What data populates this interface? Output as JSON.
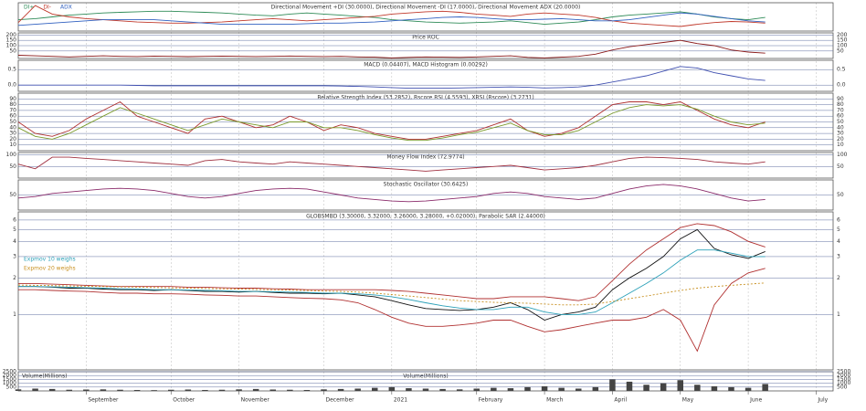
{
  "x_axis": {
    "xlim": [
      0,
      48
    ],
    "ticks": [
      {
        "value": 4,
        "label": "September"
      },
      {
        "value": 9,
        "label": "October"
      },
      {
        "value": 13,
        "label": "November"
      },
      {
        "value": 18,
        "label": "December"
      },
      {
        "value": 22,
        "label": "2021"
      },
      {
        "value": 27,
        "label": "February"
      },
      {
        "value": 31,
        "label": "March"
      },
      {
        "value": 35,
        "label": "April"
      },
      {
        "value": 39,
        "label": "May"
      },
      {
        "value": 43,
        "label": "June"
      },
      {
        "value": 47,
        "label": "July"
      }
    ]
  },
  "chart_data": [
    {
      "type": "line",
      "title": "Directional Movement +DI (30.0000), Directional Movement -DI (17.0000), Directional Movement ADX (20.0000)",
      "ylim": [
        0,
        50
      ],
      "yticks": [],
      "series": [
        {
          "name": "DI+",
          "color": "#2e8b57",
          "values": [
            20,
            22,
            25,
            28,
            30,
            32,
            33,
            34,
            35,
            35,
            34,
            33,
            32,
            30,
            28,
            27,
            30,
            32,
            30,
            28,
            26,
            24,
            20,
            18,
            16,
            15,
            14,
            15,
            16,
            18,
            15,
            12,
            14,
            16,
            20,
            25,
            28,
            30,
            32,
            34,
            30,
            25,
            22,
            20,
            24
          ]
        },
        {
          "name": "DI-",
          "color": "#c0392b",
          "values": [
            15,
            45,
            30,
            25,
            22,
            20,
            18,
            16,
            15,
            14,
            14,
            15,
            16,
            18,
            20,
            22,
            20,
            18,
            20,
            22,
            24,
            26,
            30,
            32,
            34,
            35,
            33,
            30,
            28,
            26,
            30,
            32,
            30,
            28,
            24,
            18,
            14,
            12,
            10,
            8,
            12,
            15,
            17,
            16,
            14
          ]
        },
        {
          "name": "ADX",
          "color": "#3060c0",
          "values": [
            10,
            12,
            14,
            16,
            18,
            20,
            20,
            20,
            20,
            18,
            16,
            14,
            12,
            12,
            12,
            12,
            12,
            13,
            14,
            14,
            15,
            16,
            18,
            20,
            22,
            24,
            25,
            24,
            22,
            20,
            20,
            21,
            22,
            20,
            18,
            18,
            20,
            24,
            28,
            32,
            30,
            26,
            22,
            18,
            16
          ]
        }
      ]
    },
    {
      "type": "line",
      "title": "Price ROC",
      "ylim": [
        -20,
        220
      ],
      "yticks": [
        50,
        100,
        150,
        200
      ],
      "series": [
        {
          "color": "#8b1a1a",
          "values": [
            10,
            5,
            0,
            -5,
            0,
            5,
            0,
            -2,
            2,
            0,
            -3,
            0,
            2,
            0,
            -2,
            0,
            3,
            0,
            -2,
            0,
            -5,
            -8,
            -15,
            -10,
            -5,
            -8,
            -10,
            -5,
            0,
            5,
            -10,
            -15,
            -8,
            0,
            20,
            60,
            90,
            110,
            130,
            150,
            120,
            100,
            60,
            40,
            30
          ]
        }
      ]
    },
    {
      "type": "line",
      "title": "MACD (0.04407), MACD Histogram (0.00292)",
      "ylim": [
        -0.2,
        0.8
      ],
      "yticks": [
        {
          "value": 0,
          "label": "0.0"
        },
        0.5
      ],
      "series": [
        {
          "color": "#4050b0",
          "values": [
            0,
            0,
            0,
            0,
            0,
            0,
            0,
            -0.01,
            -0.02,
            -0.02,
            -0.02,
            -0.02,
            -0.02,
            -0.02,
            -0.02,
            -0.02,
            -0.02,
            -0.02,
            -0.02,
            -0.03,
            -0.04,
            -0.06,
            -0.08,
            -0.1,
            -0.1,
            -0.1,
            -0.09,
            -0.08,
            -0.07,
            -0.06,
            -0.07,
            -0.09,
            -0.08,
            -0.06,
            0,
            0.1,
            0.2,
            0.3,
            0.45,
            0.6,
            0.55,
            0.4,
            0.3,
            0.2,
            0.15
          ]
        }
      ]
    },
    {
      "type": "line",
      "title": "Relative Strength Index (53.2852), Rscore RSI (4.5593), XRSI (Rscore) (3.2731)",
      "ylim": [
        0,
        100
      ],
      "yticks": [
        10,
        20,
        30,
        40,
        50,
        60,
        70,
        80,
        90
      ],
      "series": [
        {
          "color": "#b03030",
          "values": [
            50,
            30,
            25,
            35,
            55,
            70,
            85,
            60,
            50,
            40,
            30,
            55,
            60,
            50,
            40,
            45,
            60,
            50,
            35,
            45,
            40,
            30,
            25,
            20,
            20,
            25,
            30,
            35,
            45,
            55,
            35,
            25,
            30,
            40,
            60,
            80,
            85,
            85,
            80,
            85,
            70,
            55,
            45,
            40,
            50
          ]
        },
        {
          "color": "#7a9a2a",
          "values": [
            40,
            25,
            20,
            30,
            45,
            60,
            75,
            65,
            55,
            45,
            35,
            45,
            55,
            50,
            45,
            40,
            50,
            50,
            40,
            40,
            35,
            28,
            22,
            18,
            18,
            22,
            28,
            32,
            40,
            48,
            35,
            28,
            28,
            35,
            50,
            65,
            75,
            80,
            78,
            80,
            72,
            60,
            50,
            45,
            48
          ]
        }
      ]
    },
    {
      "type": "line",
      "title": "Money Flow Index (72.9774)",
      "ylim": [
        0,
        110
      ],
      "yticks": [
        50,
        100
      ],
      "series": [
        {
          "color": "#a03040",
          "values": [
            60,
            40,
            90,
            90,
            85,
            80,
            75,
            70,
            65,
            60,
            55,
            75,
            80,
            70,
            65,
            60,
            70,
            65,
            60,
            55,
            50,
            45,
            40,
            35,
            30,
            35,
            40,
            45,
            50,
            55,
            45,
            35,
            40,
            45,
            55,
            70,
            85,
            90,
            88,
            85,
            80,
            70,
            65,
            60,
            70
          ]
        }
      ]
    },
    {
      "type": "line",
      "title": "Stochastic Oscillator (30.6425)",
      "ylim": [
        0,
        100
      ],
      "yticks": [
        50
      ],
      "series": [
        {
          "color": "#8a2a6a",
          "values": [
            40,
            45,
            55,
            60,
            65,
            70,
            72,
            70,
            65,
            55,
            45,
            40,
            45,
            55,
            65,
            70,
            72,
            70,
            60,
            50,
            40,
            35,
            30,
            28,
            30,
            35,
            40,
            45,
            55,
            60,
            55,
            45,
            40,
            35,
            40,
            55,
            70,
            80,
            85,
            80,
            70,
            55,
            40,
            30,
            35
          ]
        }
      ]
    },
    {
      "type": "line",
      "title": "GLOBSMBD (3.30000, 3.32000, 3.26000, 3.28000, +0.02000), Parabolic SAR (2.44000)",
      "log_scale": true,
      "ylim": [
        0.35,
        7
      ],
      "yticks": [
        1,
        2,
        3,
        4,
        5,
        6
      ],
      "series": [
        {
          "color": "#111111",
          "values": [
            1.7,
            1.7,
            1.68,
            1.65,
            1.65,
            1.62,
            1.6,
            1.6,
            1.58,
            1.6,
            1.58,
            1.55,
            1.55,
            1.53,
            1.55,
            1.52,
            1.5,
            1.5,
            1.48,
            1.5,
            1.45,
            1.4,
            1.3,
            1.2,
            1.12,
            1.1,
            1.08,
            1.1,
            1.15,
            1.25,
            1.1,
            0.9,
            1.0,
            1.05,
            1.15,
            1.6,
            2.0,
            2.4,
            3.0,
            4.2,
            5.0,
            3.5,
            3.1,
            2.9,
            3.3
          ]
        },
        {
          "color": "#b03030",
          "values": [
            1.8,
            1.8,
            1.78,
            1.76,
            1.74,
            1.72,
            1.7,
            1.7,
            1.7,
            1.7,
            1.68,
            1.68,
            1.66,
            1.65,
            1.65,
            1.63,
            1.62,
            1.6,
            1.6,
            1.6,
            1.6,
            1.6,
            1.58,
            1.55,
            1.5,
            1.45,
            1.4,
            1.35,
            1.35,
            1.4,
            1.4,
            1.4,
            1.35,
            1.3,
            1.4,
            1.9,
            2.6,
            3.4,
            4.2,
            5.2,
            5.6,
            5.4,
            4.8,
            4.0,
            3.6
          ]
        },
        {
          "color": "#b03030",
          "values": [
            1.6,
            1.6,
            1.58,
            1.56,
            1.55,
            1.52,
            1.5,
            1.5,
            1.48,
            1.48,
            1.47,
            1.45,
            1.44,
            1.42,
            1.42,
            1.4,
            1.38,
            1.36,
            1.35,
            1.32,
            1.25,
            1.1,
            0.95,
            0.85,
            0.8,
            0.8,
            0.82,
            0.85,
            0.9,
            0.9,
            0.8,
            0.72,
            0.75,
            0.8,
            0.85,
            0.9,
            0.9,
            0.95,
            1.1,
            0.9,
            0.5,
            1.2,
            1.8,
            2.2,
            2.4
          ]
        },
        {
          "name": "Expmov 10 weighs",
          "color": "#2aa0b8",
          "values": [
            1.7,
            1.7,
            1.69,
            1.68,
            1.66,
            1.65,
            1.63,
            1.62,
            1.6,
            1.6,
            1.59,
            1.58,
            1.57,
            1.55,
            1.55,
            1.54,
            1.53,
            1.52,
            1.5,
            1.5,
            1.48,
            1.45,
            1.4,
            1.33,
            1.25,
            1.18,
            1.13,
            1.1,
            1.1,
            1.15,
            1.15,
            1.05,
            1.0,
            1.0,
            1.05,
            1.25,
            1.5,
            1.8,
            2.2,
            2.8,
            3.4,
            3.4,
            3.2,
            3.0,
            3.0
          ]
        },
        {
          "name": "Expmov 20 weighs",
          "color": "#c89020",
          "dashed": true,
          "values": [
            1.75,
            1.74,
            1.73,
            1.72,
            1.71,
            1.7,
            1.69,
            1.68,
            1.67,
            1.66,
            1.65,
            1.64,
            1.63,
            1.62,
            1.61,
            1.6,
            1.59,
            1.58,
            1.56,
            1.55,
            1.53,
            1.5,
            1.46,
            1.42,
            1.38,
            1.34,
            1.3,
            1.28,
            1.26,
            1.25,
            1.24,
            1.22,
            1.2,
            1.2,
            1.22,
            1.28,
            1.35,
            1.42,
            1.5,
            1.58,
            1.65,
            1.7,
            1.74,
            1.78,
            1.82
          ]
        }
      ]
    },
    {
      "type": "bar",
      "title": "Volume(Millions)",
      "ylim": [
        0,
        2500
      ],
      "yticks": [
        500,
        1000,
        1500,
        2000,
        2500
      ],
      "color": "#444444",
      "values": [
        200,
        300,
        250,
        150,
        180,
        200,
        150,
        120,
        100,
        150,
        180,
        120,
        150,
        200,
        250,
        180,
        150,
        120,
        200,
        250,
        300,
        400,
        500,
        350,
        300,
        250,
        200,
        300,
        400,
        350,
        500,
        600,
        400,
        300,
        500,
        1500,
        1200,
        800,
        1000,
        1400,
        800,
        600,
        500,
        400,
        900
      ]
    }
  ]
}
